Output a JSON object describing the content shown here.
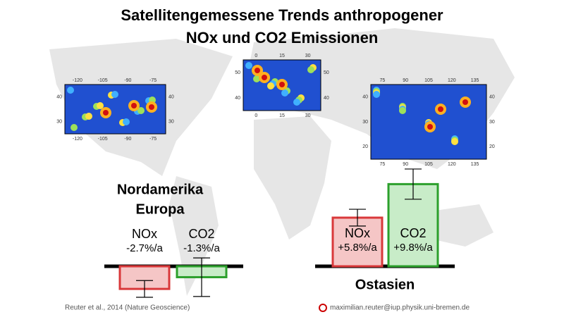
{
  "title": [
    "Satellitengemessene Trends anthropogener",
    "NOx und CO2 Emissionen"
  ],
  "maps": [
    {
      "xticks": [
        -120,
        -105,
        -90,
        -75
      ],
      "yticks": [
        40,
        30
      ]
    },
    {
      "xticks": [
        0,
        15,
        30
      ],
      "yticks": [
        50,
        40
      ]
    },
    {
      "xticks": [
        75,
        90,
        105,
        120,
        135
      ],
      "yticks": [
        40,
        30,
        20
      ]
    }
  ],
  "chart_data": [
    {
      "type": "bar",
      "title": [
        "Nordamerika",
        "Europa"
      ],
      "categories": [
        "NOx",
        "CO2"
      ],
      "values": [
        -2.7,
        -1.3
      ],
      "value_labels": [
        "-2.7%/a",
        "-1.3%/a"
      ],
      "errors": [
        1.0,
        2.3
      ],
      "colors": [
        "#d9383a",
        "#2ca02c"
      ]
    },
    {
      "type": "bar",
      "title": [
        "Ostasien"
      ],
      "categories": [
        "NOx",
        "CO2"
      ],
      "values": [
        5.8,
        9.8
      ],
      "value_labels": [
        "+5.8%/a",
        "+9.8%/a"
      ],
      "errors": [
        1.0,
        1.8
      ],
      "colors": [
        "#d9383a",
        "#2ca02c"
      ]
    }
  ],
  "footer": {
    "citation": "Reuter et al., 2014 (Nature Geoscience)",
    "email": "maximilian.reuter@iup.physik.uni-bremen.de"
  }
}
